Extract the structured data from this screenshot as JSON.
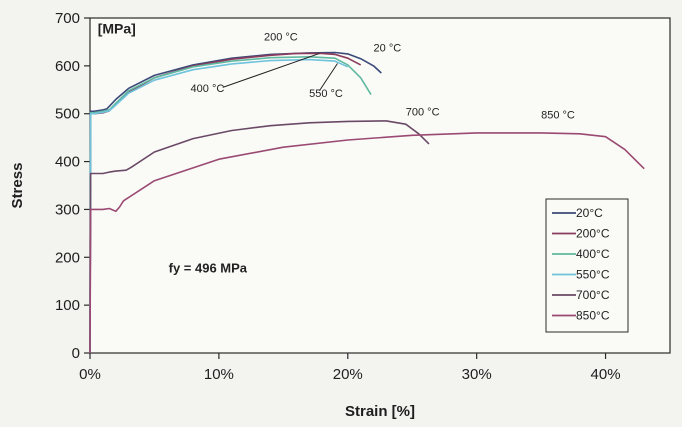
{
  "chart_data": {
    "type": "line",
    "title": "",
    "xlabel": "Strain [%]",
    "ylabel": "Stress",
    "unit_label": "[MPa]",
    "note": "fy = 496 MPa",
    "xlim": [
      0,
      45
    ],
    "ylim": [
      0,
      700
    ],
    "x_ticks": [
      0,
      10,
      20,
      30,
      40
    ],
    "x_tick_labels": [
      "0%",
      "10%",
      "20%",
      "30%",
      "40%"
    ],
    "y_ticks": [
      0,
      100,
      200,
      300,
      400,
      500,
      600,
      700
    ],
    "y_tick_labels": [
      "0",
      "100",
      "200",
      "300",
      "400",
      "500",
      "600",
      "700"
    ],
    "grid": false,
    "legend_position": "bottom-right",
    "series": [
      {
        "name": "20°C",
        "color": "#3b4a78",
        "x": [
          0,
          0.05,
          0.3,
          1.0,
          1.3,
          2.0,
          3.0,
          5.0,
          8.0,
          11.0,
          14.0,
          17.0,
          19.0,
          20.0,
          21.0,
          22.0,
          22.6
        ],
        "y": [
          0,
          505,
          505,
          508,
          510,
          530,
          553,
          580,
          602,
          616,
          624,
          627,
          628,
          625,
          615,
          600,
          585
        ]
      },
      {
        "name": "200°C",
        "color": "#8a3a5c",
        "x": [
          0,
          0.05,
          0.3,
          1.0,
          1.5,
          2.0,
          3.0,
          5.0,
          8.0,
          11.0,
          14.0,
          16.0,
          18.0,
          19.0,
          20.0,
          21.0
        ],
        "y": [
          0,
          500,
          500,
          502,
          506,
          520,
          545,
          575,
          600,
          614,
          622,
          626,
          626,
          624,
          616,
          602
        ]
      },
      {
        "name": "400°C",
        "color": "#5fb9a0",
        "x": [
          0,
          0.05,
          0.3,
          1.0,
          1.5,
          2.0,
          3.0,
          5.0,
          8.0,
          11.0,
          14.0,
          17.0,
          19.0,
          20.0,
          21.0,
          21.8
        ],
        "y": [
          0,
          502,
          502,
          505,
          508,
          522,
          548,
          575,
          598,
          610,
          617,
          619,
          616,
          602,
          575,
          540
        ]
      },
      {
        "name": "550°C",
        "color": "#6fc3dd",
        "x": [
          0,
          0.05,
          0.3,
          1.0,
          1.5,
          2.0,
          3.0,
          5.0,
          8.0,
          11.0,
          14.0,
          17.0,
          19.0,
          20.0
        ],
        "y": [
          0,
          500,
          500,
          503,
          506,
          518,
          543,
          570,
          592,
          604,
          611,
          613,
          610,
          598
        ]
      },
      {
        "name": "700°C",
        "color": "#6a4a66",
        "x": [
          0,
          0.05,
          0.3,
          1.0,
          1.5,
          2.0,
          2.8,
          3.2,
          5.0,
          8.0,
          11.0,
          14.0,
          17.0,
          20.0,
          23.0,
          24.5,
          25.5,
          26.3
        ],
        "y": [
          0,
          375,
          375,
          375,
          378,
          380,
          382,
          388,
          420,
          448,
          465,
          475,
          481,
          484,
          485,
          478,
          458,
          437
        ]
      },
      {
        "name": "850°C",
        "color": "#9a4a72",
        "x": [
          0,
          0.05,
          0.3,
          1.0,
          1.5,
          2.0,
          2.3,
          2.6,
          5.0,
          10.0,
          15.0,
          20.0,
          25.0,
          30.0,
          35.0,
          38.0,
          40.0,
          41.5,
          43.0
        ],
        "y": [
          0,
          300,
          300,
          300,
          302,
          296,
          305,
          318,
          360,
          405,
          430,
          445,
          455,
          460,
          460,
          458,
          452,
          425,
          385
        ]
      }
    ],
    "annotations": [
      {
        "text": "200 °C",
        "x": 13.5,
        "y": 653
      },
      {
        "text": "20 °C",
        "x": 22.0,
        "y": 630
      },
      {
        "text": "400 °C",
        "x": 7.8,
        "y": 545
      },
      {
        "text": "550 °C",
        "x": 17.0,
        "y": 535
      },
      {
        "text": "700 °C",
        "x": 24.5,
        "y": 496
      },
      {
        "text": "850 °C",
        "x": 35.0,
        "y": 490
      }
    ]
  }
}
